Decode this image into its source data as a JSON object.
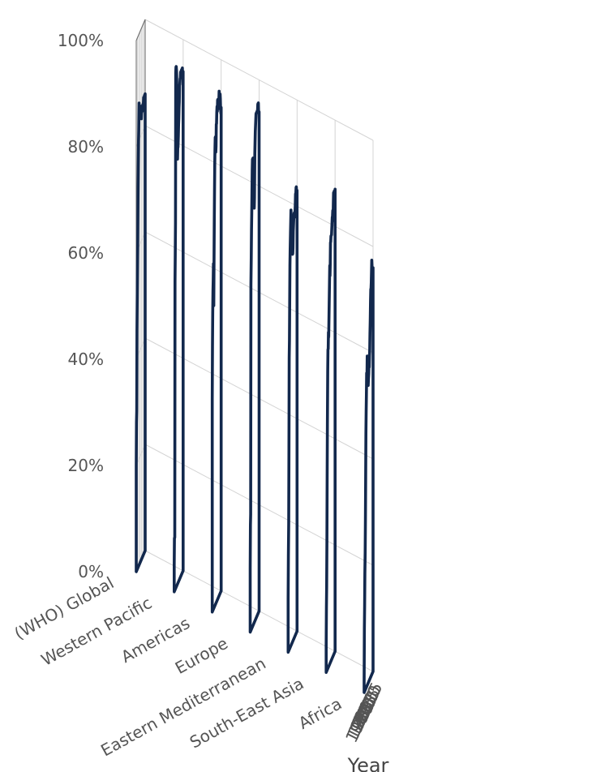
{
  "chart_data": {
    "type": "line",
    "projection": "3d",
    "title": "",
    "x_axis": {
      "title": "Year",
      "range": [
        1980,
        2015
      ],
      "ticks": [
        1980,
        1985,
        1990,
        1995,
        2000,
        2005,
        2010,
        2015
      ],
      "tick_labels": [
        "1980",
        "1985",
        "1990",
        "1995",
        "2000",
        "2005",
        "2010",
        "2015"
      ]
    },
    "y_axis": {
      "title": "",
      "categories": [
        "(WHO) Global",
        "Western Pacific",
        "Americas",
        "Europe",
        "Eastern Mediterranean",
        "South-East Asia",
        "Africa"
      ]
    },
    "z_axis": {
      "title": "",
      "range": [
        0,
        100
      ],
      "ticks": [
        0,
        20,
        40,
        60,
        80,
        100
      ],
      "tick_labels": [
        "0%",
        "20%",
        "40%",
        "60%",
        "80%",
        "100%"
      ]
    },
    "grid": true,
    "legend": "none",
    "series_color": "#12284d",
    "x": [
      1980,
      1981,
      1982,
      1983,
      1984,
      1985,
      1986,
      1987,
      1988,
      1989,
      1990,
      1991,
      1992,
      1993,
      1994,
      1995,
      1996,
      1997,
      1998,
      1999,
      2000,
      2001,
      2002,
      2003,
      2004,
      2005,
      2006,
      2007,
      2008,
      2009,
      2010,
      2011,
      2012,
      2013,
      2014,
      2015
    ],
    "series": [
      {
        "name": "(WHO) Global",
        "values": [
          20,
          28,
          30,
          45,
          52,
          57,
          62,
          70,
          75,
          80,
          82,
          87,
          86,
          86,
          86,
          86,
          85,
          84,
          85,
          84,
          83,
          84,
          84,
          85,
          84,
          85,
          85,
          85,
          85,
          86,
          85,
          85,
          86,
          86,
          86,
          86
        ]
      },
      {
        "name": "Western Pacific",
        "values": [
          5,
          10,
          10,
          58,
          63,
          69,
          97,
          98,
          98,
          97,
          95,
          92,
          90,
          80,
          82,
          82,
          84,
          86,
          87,
          89,
          90,
          93,
          93,
          94,
          94,
          95,
          94,
          95,
          94,
          95,
          95,
          94,
          95,
          93,
          94,
          94
        ]
      },
      {
        "name": "Americas",
        "values": [
          40,
          50,
          56,
          60,
          62,
          65,
          57,
          65,
          72,
          78,
          83,
          86,
          88,
          88,
          85,
          86,
          90,
          90,
          92,
          93,
          92,
          94,
          94,
          93,
          92,
          92,
          93,
          95,
          93,
          93,
          94,
          94,
          93,
          91,
          90,
          91
        ]
      },
      {
        "name": "Europe",
        "values": [
          12,
          20,
          22,
          65,
          70,
          75,
          78,
          82,
          86,
          88,
          88,
          88,
          86,
          85,
          85,
          82,
          78,
          80,
          88,
          90,
          92,
          93,
          94,
          95,
          95,
          95,
          95,
          95,
          95,
          95,
          96,
          96,
          96,
          94,
          94,
          94
        ]
      },
      {
        "name": "Eastern Mediterranean",
        "values": [
          10,
          18,
          24,
          38,
          55,
          58,
          65,
          72,
          75,
          78,
          80,
          82,
          80,
          78,
          77,
          77,
          76,
          73,
          73,
          74,
          77,
          78,
          79,
          80,
          80,
          80,
          79,
          80,
          81,
          83,
          83,
          84,
          84,
          83,
          83,
          83
        ]
      },
      {
        "name": "South-East Asia",
        "values": [
          5,
          12,
          16,
          24,
          36,
          46,
          56,
          60,
          60,
          63,
          62,
          65,
          68,
          72,
          75,
          73,
          75,
          79,
          79,
          80,
          80,
          80,
          81,
          82,
          83,
          83,
          84,
          82,
          85,
          87,
          87,
          86,
          87,
          86,
          86,
          87
        ]
      },
      {
        "name": "Africa",
        "values": [
          2,
          12,
          16,
          22,
          26,
          32,
          40,
          48,
          52,
          55,
          59,
          58,
          62,
          60,
          59,
          58,
          56,
          57,
          58,
          60,
          59,
          61,
          62,
          65,
          67,
          71,
          73,
          73,
          74,
          76,
          78,
          77,
          74,
          75,
          74,
          76
        ]
      }
    ]
  }
}
